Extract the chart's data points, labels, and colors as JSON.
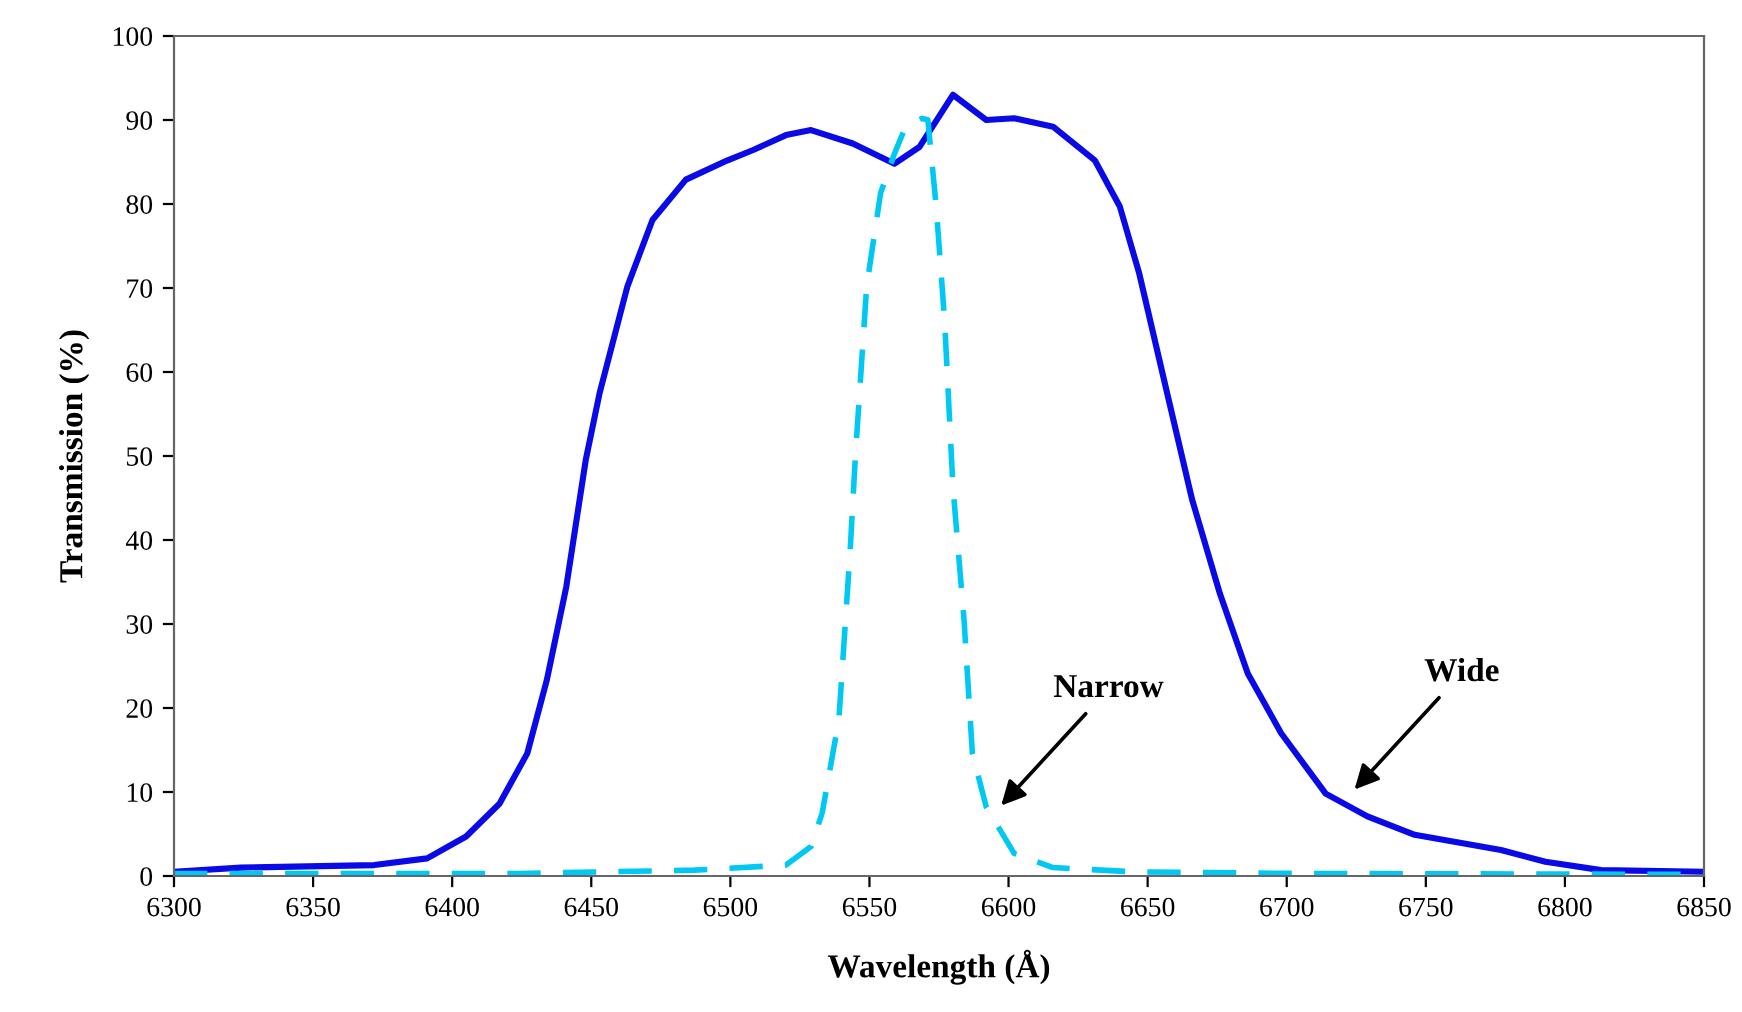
{
  "chart_data": {
    "type": "line",
    "xlabel": "Wavelength (Å)",
    "ylabel": "Transmission (%)",
    "xlim": [
      6300,
      6850
    ],
    "xticks": [
      6300,
      6350,
      6400,
      6450,
      6500,
      6550,
      6600,
      6650,
      6700,
      6750,
      6800,
      6850
    ],
    "ylim": [
      0,
      100
    ],
    "yticks": [
      0,
      10,
      20,
      30,
      40,
      50,
      60,
      70,
      80,
      90,
      100
    ],
    "grid": false,
    "marker": "none",
    "series": [
      {
        "color": "#0a0ae6",
        "line_style": "solid",
        "x": [
          6300,
          6324,
          6372,
          6391,
          6405,
          6417,
          6427,
          6434,
          6441,
          6448,
          6453,
          6463,
          6472,
          6484,
          6499,
          6508,
          6520,
          6529,
          6544,
          6559,
          6568,
          6580,
          6592,
          6602,
          6616,
          6631,
          6640,
          6647,
          6657,
          6666,
          6676,
          6686,
          6698,
          6714,
          6729,
          6746,
          6777,
          6793,
          6813,
          6850
        ],
        "values": [
          0.5,
          1.0,
          1.3,
          2.1,
          4.7,
          8.6,
          14.6,
          23.3,
          34.4,
          49.5,
          57.5,
          70.2,
          78.1,
          82.9,
          85.2,
          86.4,
          88.2,
          88.8,
          87.2,
          84.8,
          86.8,
          93.0,
          90.0,
          90.2,
          89.2,
          85.2,
          79.7,
          71.7,
          57.5,
          44.8,
          33.6,
          24.1,
          17.0,
          9.8,
          7.1,
          4.9,
          3.1,
          1.7,
          0.7,
          0.5
        ]
      },
      {
        "color": "#00c8f5",
        "line_style": "dashed",
        "x": [
          6300,
          6424,
          6487,
          6520,
          6529,
          6533,
          6539,
          6543,
          6545,
          6549,
          6554,
          6559,
          6563,
          6569,
          6571,
          6574,
          6577,
          6580,
          6584,
          6587,
          6592,
          6602,
          6616,
          6645,
          6705,
          6850
        ],
        "values": [
          0.3,
          0.3,
          0.7,
          1.3,
          3.5,
          7.5,
          18.6,
          38.4,
          50.3,
          70.2,
          81.3,
          86.0,
          89.2,
          90.2,
          90.0,
          79.7,
          66.2,
          46.4,
          30.5,
          14.6,
          8.2,
          2.7,
          1.0,
          0.5,
          0.3,
          0.2
        ]
      }
    ],
    "annotations": [
      {
        "text": "Narrow",
        "x": 6596,
        "y": 7.9
      },
      {
        "text": "Wide",
        "x": 6723,
        "y": 9.8
      }
    ]
  }
}
